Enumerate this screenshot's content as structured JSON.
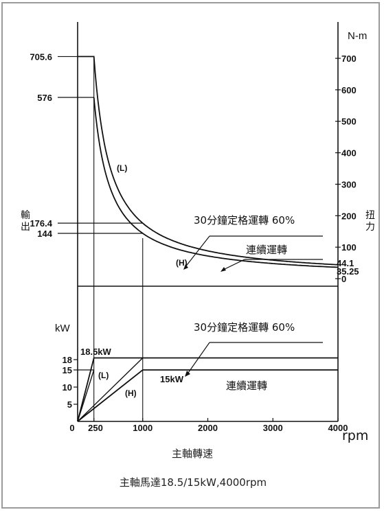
{
  "chart_data": [
    {
      "type": "line",
      "panel": "torque",
      "xlabel": "rpm",
      "ylabel_left": "輸出",
      "ylabel_right": "扭力",
      "unit": "N-m",
      "xlim": [
        0,
        4000
      ],
      "ylim": [
        0,
        750
      ],
      "right_ticks": [
        "0",
        "100",
        "200",
        "300",
        "400",
        "500",
        "600",
        "700"
      ],
      "left_marks": [
        "705.6",
        "576",
        "176.4",
        "144"
      ],
      "end_values": [
        "44.1",
        "35.25"
      ],
      "curve_labels": [
        "(L)",
        "(H)"
      ],
      "series": [
        {
          "name": "30分鐘定格運轉 60%",
          "x": [
            0,
            250,
            1000,
            2000,
            3000,
            4000
          ],
          "y": [
            705.6,
            705.6,
            176.4,
            88.2,
            58.8,
            44.1
          ]
        },
        {
          "name": "連續運轉",
          "x": [
            250,
            1000,
            2000,
            3000,
            4000
          ],
          "y": [
            576,
            144,
            72,
            48,
            35.25
          ]
        }
      ],
      "annotations": [
        "30分鐘定格運轉 60%",
        "連續運轉"
      ]
    },
    {
      "type": "line",
      "panel": "power",
      "unit": "kW",
      "xlim": [
        0,
        4000
      ],
      "ylim": [
        0,
        22
      ],
      "x_ticks": [
        "0",
        "250",
        "1000",
        "2000",
        "3000",
        "4000"
      ],
      "y_ticks": [
        "5",
        "10",
        "15",
        "18"
      ],
      "curve_labels": [
        "(L)",
        "(H)"
      ],
      "series": [
        {
          "name": "18.5kW",
          "x": [
            0,
            250,
            4000
          ],
          "y": [
            0,
            18.5,
            18.5
          ]
        },
        {
          "name": "15kW",
          "x": [
            0,
            1000,
            4000
          ],
          "y": [
            0,
            15,
            15
          ]
        }
      ],
      "annotations": [
        "30分鐘定格運轉 60%",
        "連續運轉"
      ]
    }
  ],
  "xlabel_bottom": "主軸轉速",
  "caption": "主軸馬達18.5/15kW,4000rpm"
}
